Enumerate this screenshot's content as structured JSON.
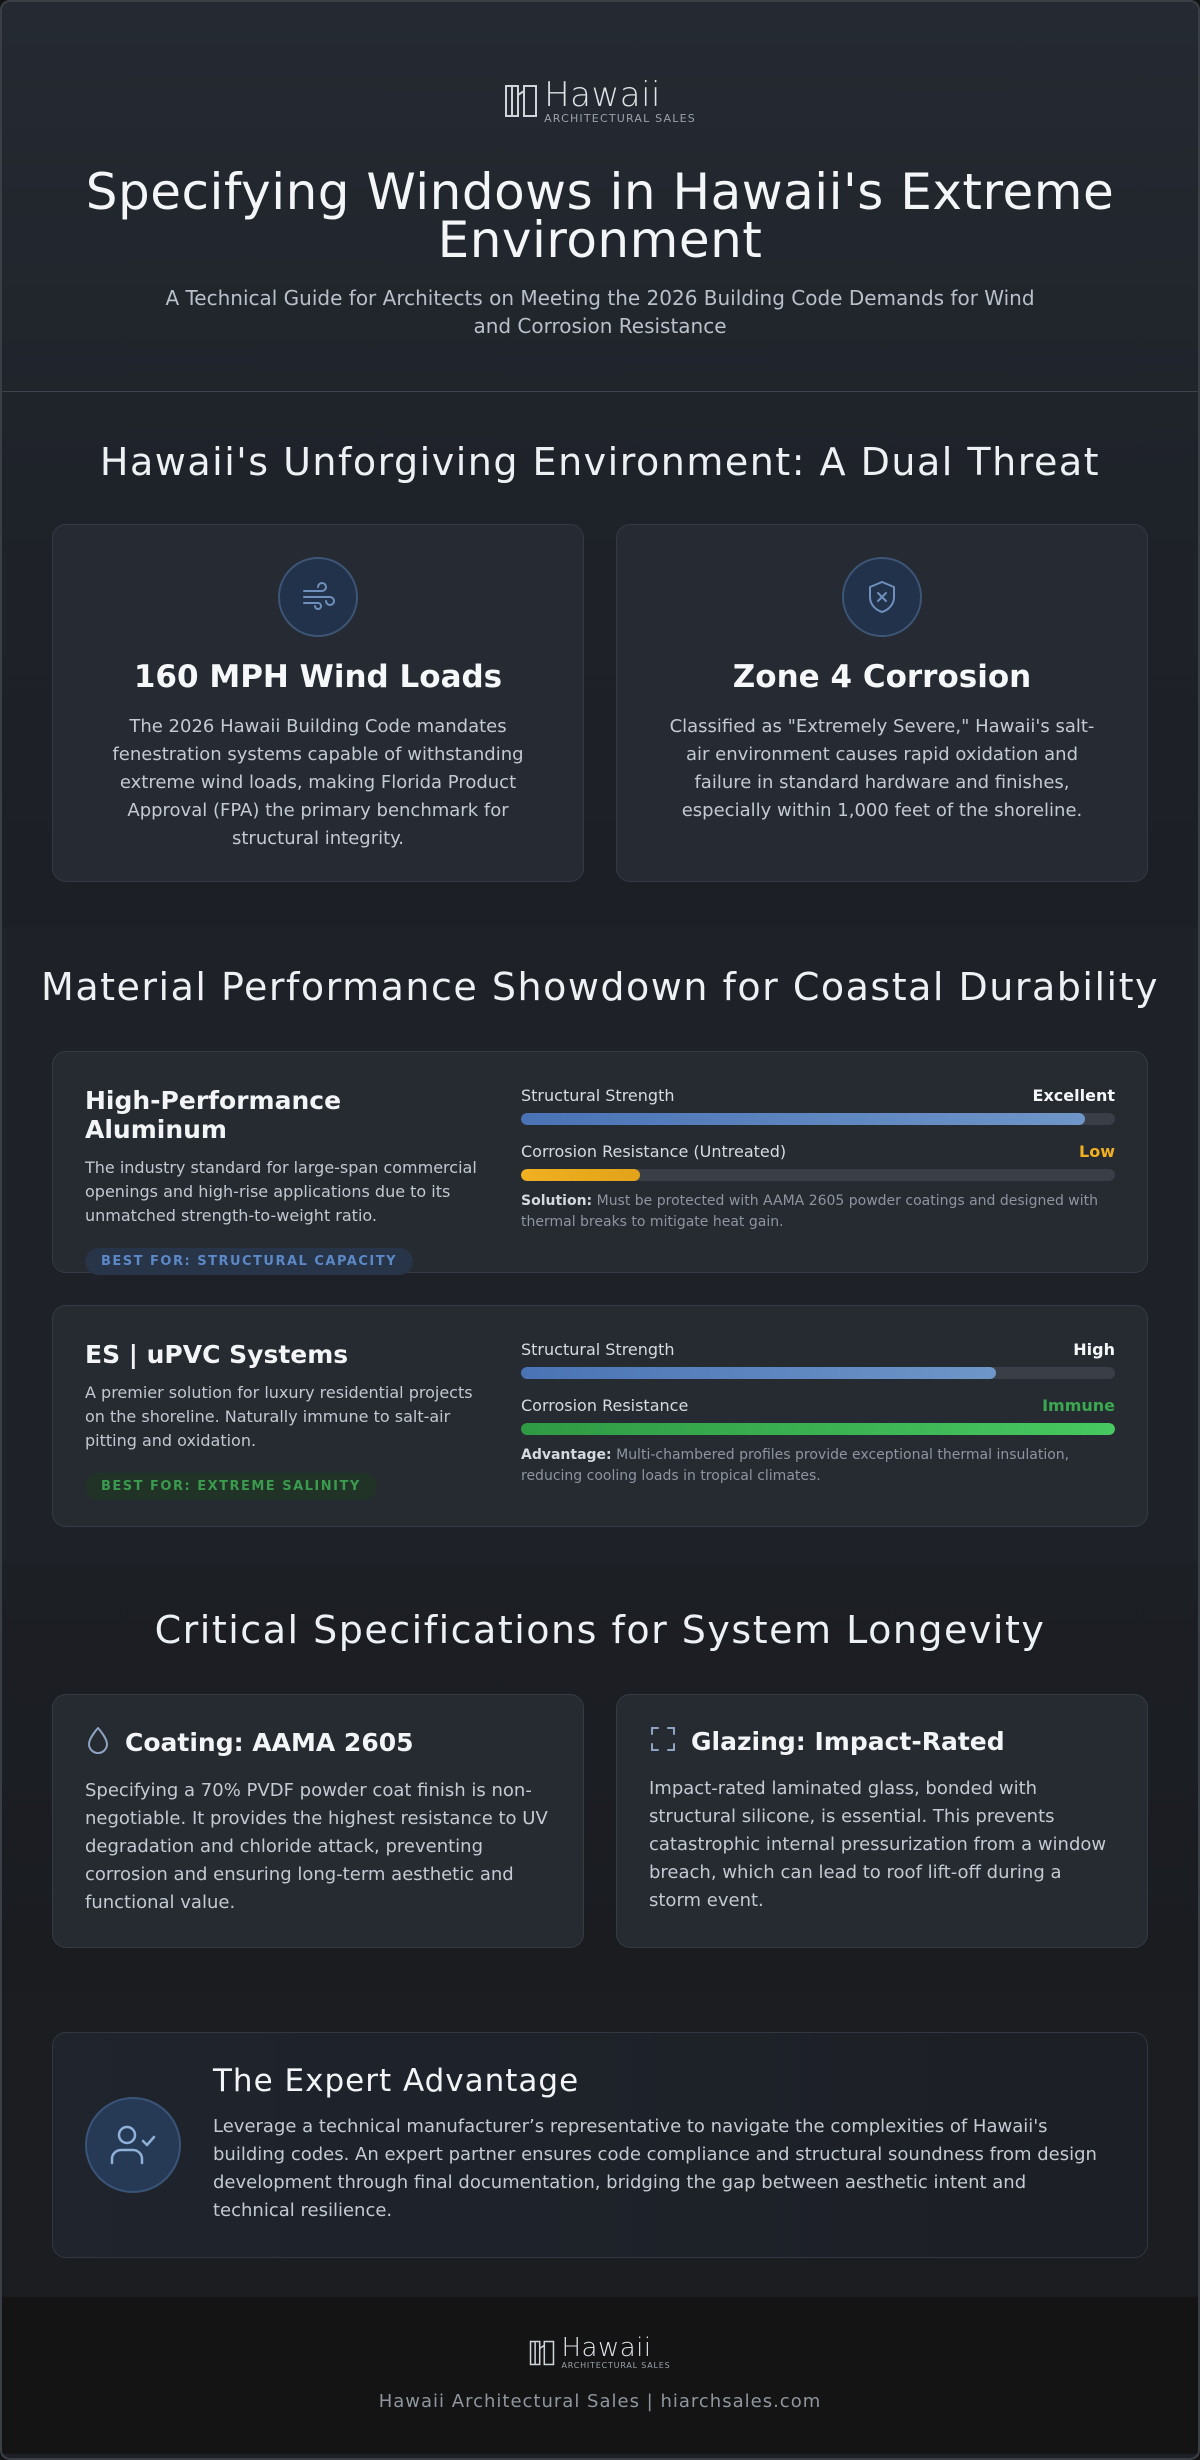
{
  "brand": {
    "name": "Hawaii",
    "tagline": "ARCHITECTURAL SALES"
  },
  "hero": {
    "title": "Specifying Windows in Hawaii's Extreme Environment",
    "subtitle": "A Technical Guide for Architects on Meeting the 2026 Building Code Demands for Wind and Corrosion Resistance"
  },
  "environment": {
    "title": "Hawaii's Unforgiving Environment: A Dual Threat",
    "cards": [
      {
        "icon": "wind-icon",
        "title": "160 MPH Wind Loads",
        "text": "The 2026 Hawaii Building Code mandates fenestration systems capable of withstanding extreme wind loads, making Florida Product Approval (FPA) the primary benchmark for structural integrity."
      },
      {
        "icon": "shield-x-icon",
        "title": "Zone 4 Corrosion",
        "text": "Classified as \"Extremely Severe,\" Hawaii's salt-air environment causes rapid oxidation and failure in standard hardware and finishes, especially within 1,000 feet of the shoreline."
      }
    ]
  },
  "materials": {
    "title": "Material Performance Showdown for Coastal Durability",
    "items": [
      {
        "name": "High-Performance Aluminum",
        "description": "The industry standard for large-span commercial openings and high-rise applications due to its unmatched strength-to-weight ratio.",
        "badge": "BEST FOR: STRUCTURAL CAPACITY",
        "metrics": [
          {
            "label": "Structural Strength",
            "value": "Excellent",
            "level": 0.95,
            "color": "#f4f6f8"
          },
          {
            "label": "Corrosion Resistance (Untreated)",
            "value": "Low",
            "level": 0.2,
            "color": "#f0b020"
          }
        ],
        "note_label": "Solution:",
        "note_text": "Must be protected with AAMA 2605 powder coatings and designed with thermal breaks to mitigate heat gain."
      },
      {
        "name": "ES | uPVC Systems",
        "description": "A premier solution for luxury residential projects on the shoreline. Naturally immune to salt-air pitting and oxidation.",
        "badge": "BEST FOR: EXTREME SALINITY",
        "metrics": [
          {
            "label": "Structural Strength",
            "value": "High",
            "level": 0.8,
            "color": "#f4f6f8"
          },
          {
            "label": "Corrosion Resistance",
            "value": "Immune",
            "level": 1.0,
            "color": "#3aa84f"
          }
        ],
        "note_label": "Advantage:",
        "note_text": "Multi-chambered profiles provide exceptional thermal insulation, reducing cooling loads in tropical climates."
      }
    ]
  },
  "specs": {
    "title": "Critical Specifications for System Longevity",
    "cards": [
      {
        "icon": "droplet-icon",
        "title": "Coating: AAMA 2605",
        "text": "Specifying a 70% PVDF powder coat finish is non-negotiable. It provides the highest resistance to UV degradation and chloride attack, preventing corrosion and ensuring long-term aesthetic and functional value."
      },
      {
        "icon": "frame-corners-icon",
        "title": "Glazing: Impact-Rated",
        "text": "Impact-rated laminated glass, bonded with structural silicone, is essential. This prevents catastrophic internal pressurization from a window breach, which can lead to roof lift-off during a storm event."
      }
    ]
  },
  "expert": {
    "title": "The Expert Advantage",
    "text": "Leverage a technical manufacturer’s representative to navigate the complexities of Hawaii's building codes. An expert partner ensures code compliance and structural soundness from design development through final documentation, bridging the gap between aesthetic intent and technical resilience."
  },
  "footer": {
    "text": "Hawaii Architectural Sales | hiarchsales.com"
  }
}
